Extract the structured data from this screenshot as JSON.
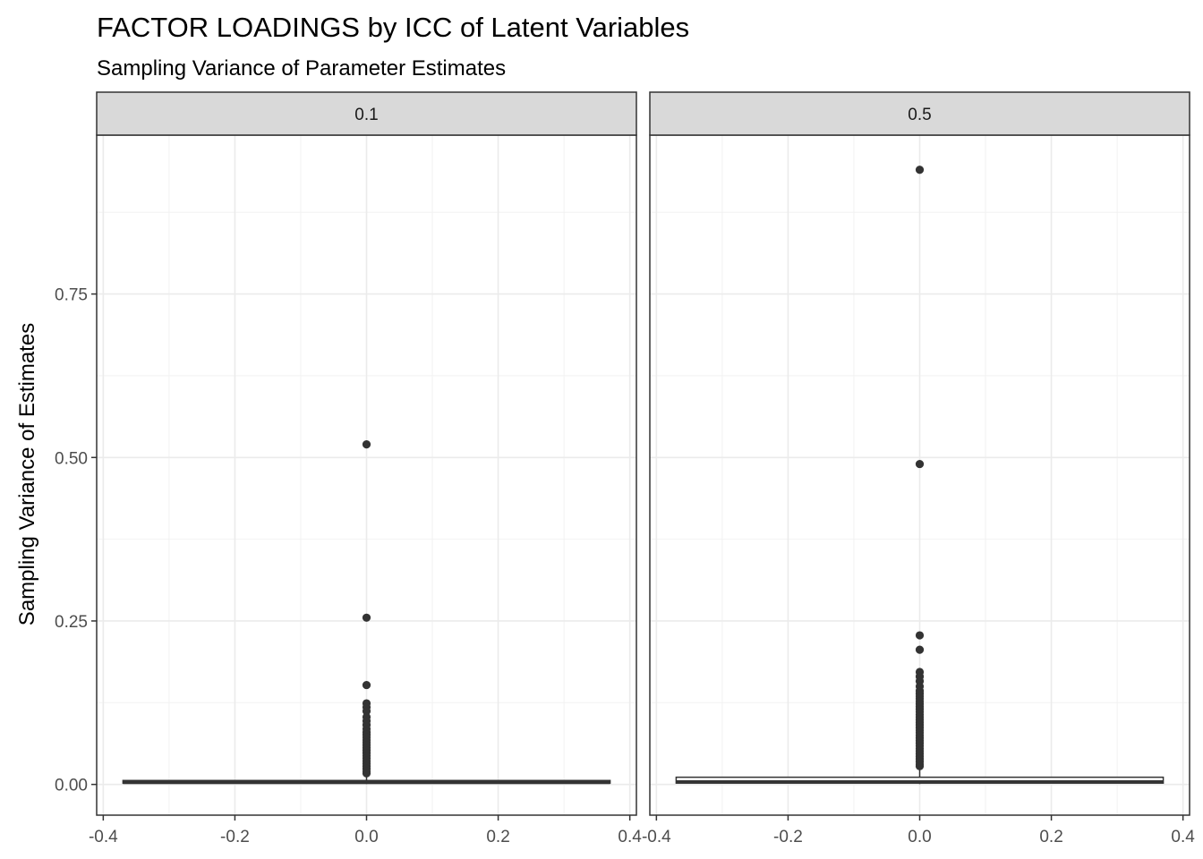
{
  "chart_data": {
    "type": "box",
    "title": "FACTOR LOADINGS by ICC of Latent Variables",
    "subtitle": "Sampling Variance of Parameter Estimates",
    "xlabel": "",
    "ylabel": "Sampling Variance of Estimates",
    "xlim": [
      -0.41,
      0.41
    ],
    "ylim": [
      -0.047,
      0.993
    ],
    "x_ticks": [
      -0.4,
      -0.2,
      0.0,
      0.2,
      0.4
    ],
    "x_tick_labels": [
      "-0.4",
      "-0.2",
      "0.0",
      "0.2",
      "0.4"
    ],
    "y_ticks": [
      0.0,
      0.25,
      0.5,
      0.75
    ],
    "y_tick_labels": [
      "0.00",
      "0.25",
      "0.50",
      "0.75"
    ],
    "grid": true,
    "theme": "bw",
    "box_color": "#333333",
    "point_color": "#333333",
    "strip_fill": "#d9d9d9",
    "panels": [
      {
        "facet_label": "0.1",
        "box": {
          "x": 0.0,
          "xmin": -0.37,
          "xmax": 0.37,
          "q1": 0.002,
          "median": 0.003,
          "q3": 0.006,
          "whisker_low": 0.0005,
          "whisker_high": 0.012
        },
        "outliers_x": 0.0,
        "outliers": [
          0.52,
          0.255,
          0.152,
          0.124,
          0.118,
          0.112,
          0.103,
          0.097,
          0.091,
          0.085,
          0.08,
          0.076,
          0.072,
          0.068,
          0.064,
          0.06,
          0.056,
          0.052,
          0.048,
          0.044,
          0.04,
          0.036,
          0.032,
          0.028,
          0.024,
          0.02,
          0.017
        ]
      },
      {
        "facet_label": "0.5",
        "box": {
          "x": 0.0,
          "xmin": -0.37,
          "xmax": 0.37,
          "q1": 0.002,
          "median": 0.004,
          "q3": 0.011,
          "whisker_low": 0.0005,
          "whisker_high": 0.025
        },
        "outliers_x": 0.0,
        "outliers": [
          0.94,
          0.49,
          0.228,
          0.206,
          0.172,
          0.165,
          0.158,
          0.15,
          0.143,
          0.139,
          0.135,
          0.131,
          0.127,
          0.123,
          0.119,
          0.115,
          0.111,
          0.107,
          0.103,
          0.099,
          0.095,
          0.091,
          0.087,
          0.083,
          0.079,
          0.075,
          0.071,
          0.067,
          0.063,
          0.059,
          0.055,
          0.051,
          0.047,
          0.043,
          0.039,
          0.035,
          0.031,
          0.028
        ]
      }
    ]
  }
}
